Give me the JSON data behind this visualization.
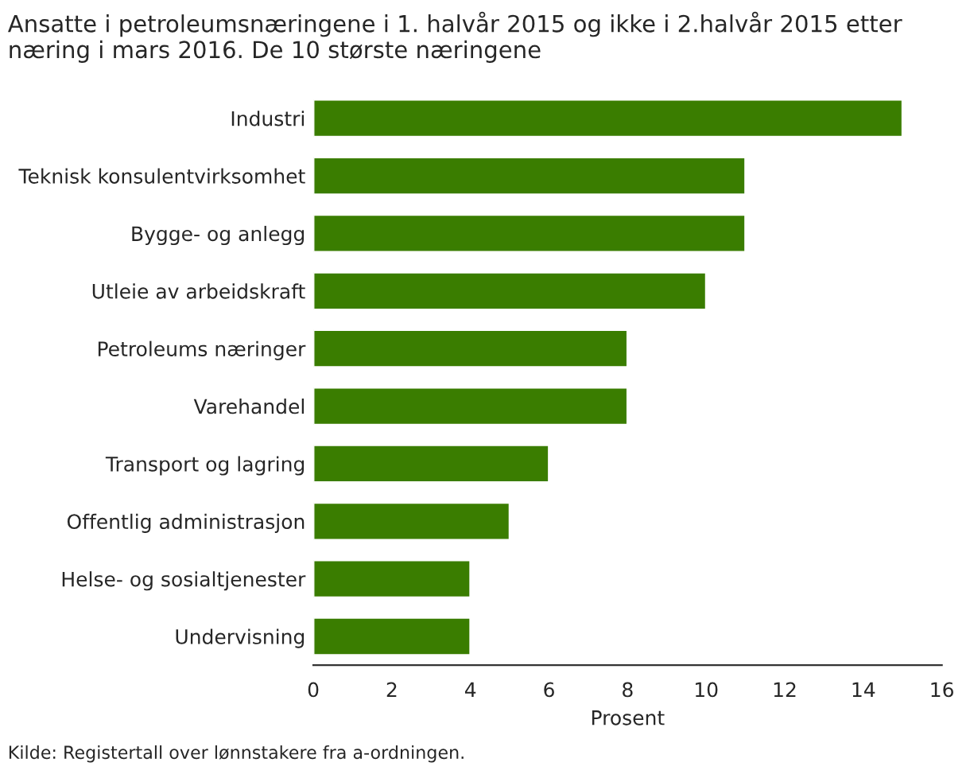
{
  "chart_data": {
    "type": "bar",
    "orientation": "horizontal",
    "title": "Ansatte i petroleumsnæringene i 1. halvår 2015 og ikke i 2.halvår 2015 etter næring i mars 2016. De 10 største næringene",
    "xlabel": "Prosent",
    "categories": [
      "Industri",
      "Teknisk konsulentvirksomhet",
      "Bygge- og anlegg",
      "Utleie av arbeidskraft",
      "Petroleums næringer",
      "Varehandel",
      "Transport og lagring",
      "Offentlig administrasjon",
      "Helse- og sosialtjenester",
      "Undervisning"
    ],
    "values": [
      15,
      11,
      11,
      10,
      8,
      8,
      6,
      5,
      4,
      4
    ],
    "color": "#3a7d00",
    "xlim": [
      0,
      16
    ],
    "xticks": [
      0,
      2,
      4,
      6,
      8,
      10,
      12,
      14,
      16
    ],
    "grid": false,
    "legend": false,
    "annotations": [
      "Kilde: Registertall over lønnstakere fra a-ordningen."
    ]
  }
}
